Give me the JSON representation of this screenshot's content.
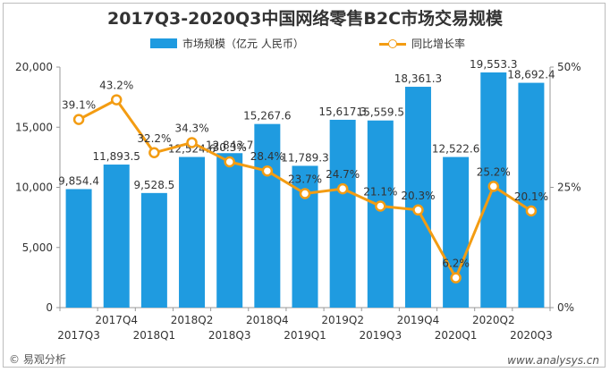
{
  "title": "2017Q3-2020Q3中国网络零售B2C市场交易规模",
  "legend": {
    "bar_label": "市场规模（亿元 人民币）",
    "line_label": "同比增长率"
  },
  "footer": {
    "source": "© 易观分析",
    "site": "www.analysys.cn"
  },
  "watermark": "analysys",
  "colors": {
    "bar": "#1f9be0",
    "line": "#f39c12",
    "text": "#333333",
    "axis": "#999999"
  },
  "chart_data": {
    "type": "bar",
    "title": "2017Q3-2020Q3中国网络零售B2C市场交易规模",
    "categories": [
      "2017Q3",
      "2017Q4",
      "2018Q1",
      "2018Q2",
      "2018Q3",
      "2018Q4",
      "2019Q1",
      "2019Q2",
      "2019Q3",
      "2019Q4",
      "2020Q1",
      "2020Q2",
      "2020Q3"
    ],
    "series": [
      {
        "name": "市场规模（亿元 人民币）",
        "type": "bar",
        "axis": "left",
        "values": [
          9854.4,
          11893.5,
          9528.5,
          12524.6,
          12843.7,
          15267.6,
          11789.3,
          15617.3,
          15559.5,
          18361.3,
          12522.6,
          19553.3,
          18692.4
        ],
        "labels": [
          "9,854.4",
          "11,893.5",
          "9,528.5",
          "12,524.6",
          "12,843.7",
          "15,267.6",
          "11,789.3",
          "15,617.3",
          "15,559.5",
          "18,361.3",
          "12,522.6",
          "19,553.3",
          "18,692.4"
        ]
      },
      {
        "name": "同比增长率",
        "type": "line",
        "axis": "right",
        "values": [
          39.1,
          43.2,
          32.2,
          34.3,
          30.3,
          28.4,
          23.7,
          24.7,
          21.1,
          20.3,
          6.2,
          25.2,
          20.1
        ],
        "labels": [
          "39.1%",
          "43.2%",
          "32.2%",
          "34.3%",
          "30.3%",
          "28.4%",
          "23.7%",
          "24.7%",
          "21.1%",
          "20.3%",
          "6.2%",
          "25.2%",
          "20.1%"
        ]
      }
    ],
    "y_left": {
      "min": 0,
      "max": 20000,
      "ticks": [
        0,
        5000,
        10000,
        15000,
        20000
      ],
      "tick_labels": [
        "0",
        "5,000",
        "10,000",
        "15,000",
        "20,000"
      ]
    },
    "y_right": {
      "min": 0,
      "max": 50,
      "ticks": [
        0,
        25,
        50
      ],
      "tick_labels": [
        "0%",
        "25%",
        "50%"
      ]
    },
    "grid": false,
    "legend_position": "top"
  }
}
